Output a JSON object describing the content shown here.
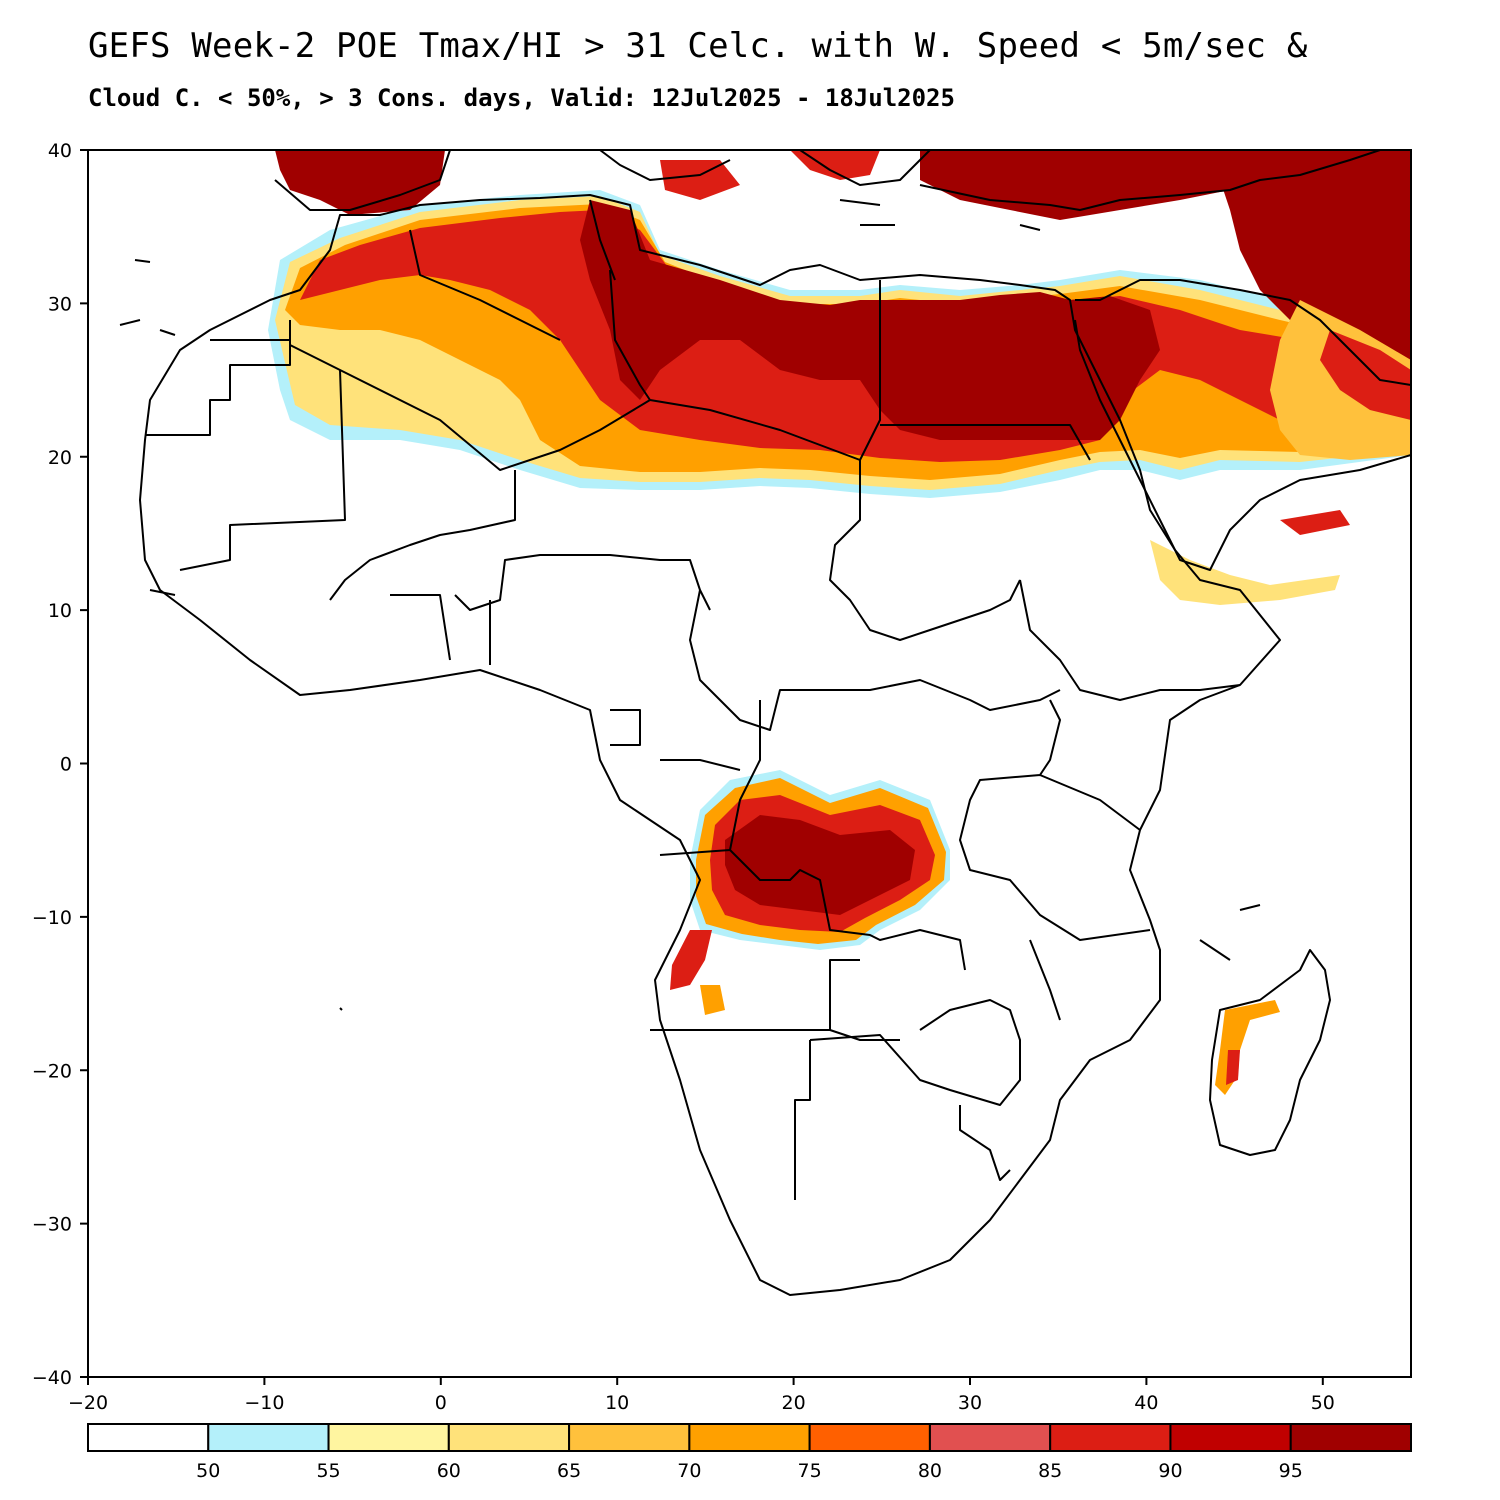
{
  "title_line1": "GEFS Week-2 POE Tmax/HI > 31 Celc. with W. Speed < 5m/sec &",
  "title_line2": "Cloud C. < 50%, > 3 Cons. days, Valid: 12Jul2025 - 18Jul2025",
  "axes": {
    "lon_range": [
      -20,
      55
    ],
    "lat_range": [
      -40,
      40
    ],
    "lon_ticks": [
      -20,
      -10,
      0,
      10,
      20,
      30,
      40,
      50
    ],
    "lon_tick_labels": [
      "−20",
      "−10",
      "0",
      "10",
      "20",
      "30",
      "40",
      "50"
    ],
    "lat_ticks": [
      40,
      30,
      20,
      10,
      0,
      -10,
      -20,
      -30,
      -40
    ],
    "lat_tick_labels": [
      "40",
      "30",
      "20",
      "10",
      "0",
      "−10",
      "−20",
      "−30",
      "−40"
    ]
  },
  "colorbar": {
    "boundaries": [
      "50",
      "55",
      "60",
      "65",
      "70",
      "75",
      "80",
      "85",
      "90",
      "95"
    ],
    "colors": [
      "#ffffff",
      "#b4f0fa",
      "#fff5a0",
      "#ffe27a",
      "#ffc13c",
      "#ffa000",
      "#ff6000",
      "#e15050",
      "#dc1e14",
      "#c00000",
      "#a00000"
    ]
  }
}
